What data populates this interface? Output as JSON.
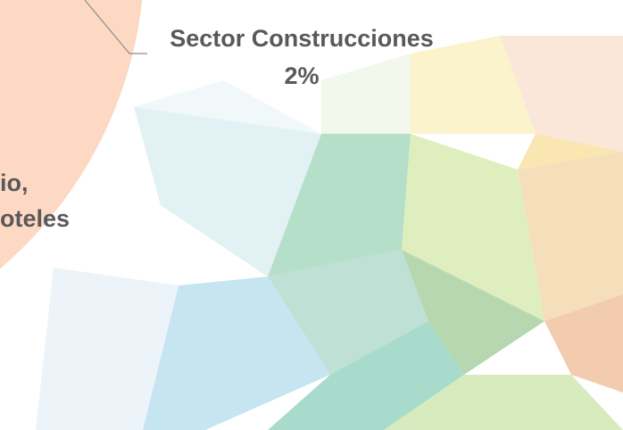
{
  "chart_data": {
    "type": "pie",
    "categories": [
      "Sector Construcciones"
    ],
    "values": [
      2
    ],
    "value_labels": [
      "2%"
    ],
    "annotations": [
      "io,",
      "oteles"
    ]
  }
}
